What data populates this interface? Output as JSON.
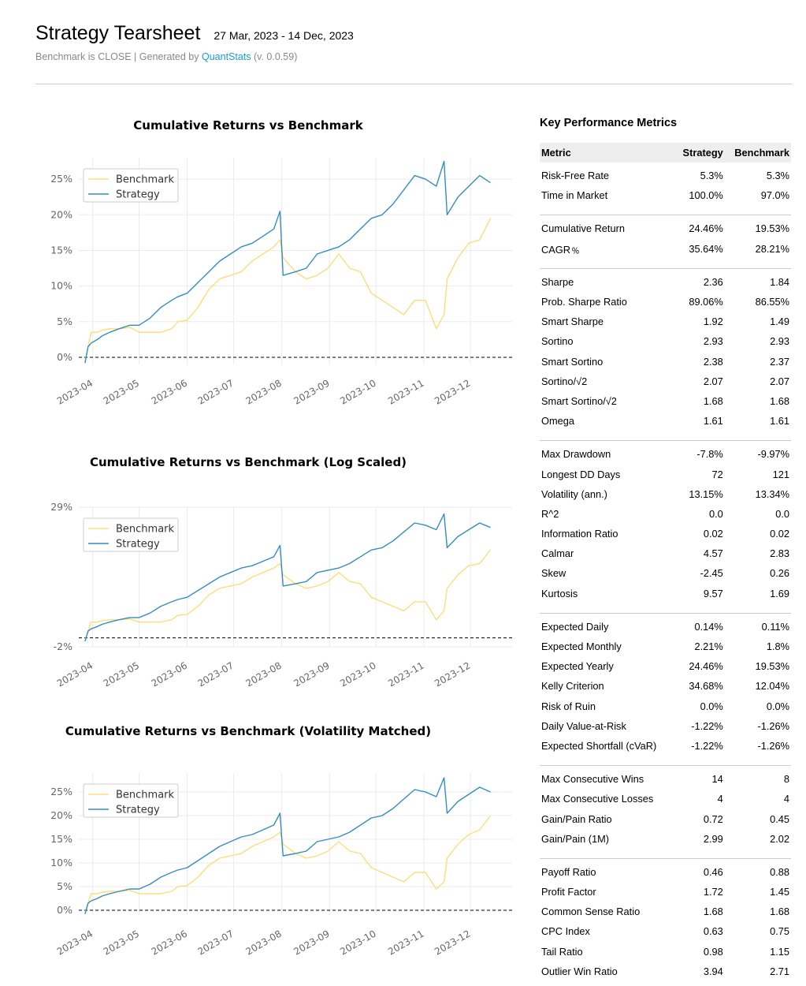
{
  "header": {
    "title": "Strategy Tearsheet",
    "date_range": "27 Mar, 2023 - 14 Dec, 2023",
    "subtitle_prefix": "Benchmark is CLOSE | Generated by ",
    "subtitle_link": "QuantStats",
    "subtitle_suffix": " (v. 0.0.59)"
  },
  "colors": {
    "benchmark": "#fedd78",
    "strategy": "#348dc1",
    "grid": "#ebebeb",
    "axis_text": "#666666"
  },
  "chart_data": [
    {
      "type": "line",
      "title": "Cumulative Returns vs Benchmark",
      "xlabel": "",
      "ylabel": "",
      "x": [
        "2023-03-27",
        "2023-03-29",
        "2023-03-31",
        "2023-04-04",
        "2023-04-07",
        "2023-04-12",
        "2023-04-18",
        "2023-04-25",
        "2023-05-01",
        "2023-05-08",
        "2023-05-15",
        "2023-05-22",
        "2023-05-26",
        "2023-06-01",
        "2023-06-08",
        "2023-06-15",
        "2023-06-22",
        "2023-06-29",
        "2023-07-06",
        "2023-07-13",
        "2023-07-20",
        "2023-07-27",
        "2023-07-31",
        "2023-08-02",
        "2023-08-10",
        "2023-08-17",
        "2023-08-24",
        "2023-08-31",
        "2023-09-07",
        "2023-09-14",
        "2023-09-21",
        "2023-09-28",
        "2023-10-05",
        "2023-10-12",
        "2023-10-19",
        "2023-10-26",
        "2023-11-02",
        "2023-11-09",
        "2023-11-14",
        "2023-11-16",
        "2023-11-23",
        "2023-11-30",
        "2023-12-07",
        "2023-12-14"
      ],
      "x_ticks": [
        "2023-04",
        "2023-05",
        "2023-06",
        "2023-07",
        "2023-08",
        "2023-09",
        "2023-10",
        "2023-11",
        "2023-12"
      ],
      "x_tick_dates": [
        "2023-04-01",
        "2023-05-01",
        "2023-06-01",
        "2023-07-01",
        "2023-08-01",
        "2023-09-01",
        "2023-10-01",
        "2023-11-01",
        "2023-12-01"
      ],
      "y_ticks": [
        "0%",
        "5%",
        "10%",
        "15%",
        "20%",
        "25%"
      ],
      "y_tick_values": [
        0,
        5,
        10,
        15,
        20,
        25
      ],
      "ylim": [
        -1,
        28
      ],
      "legend_position": "upper-left",
      "baseline": 0,
      "series": [
        {
          "name": "Benchmark",
          "values": [
            -0.5,
            1.5,
            3.5,
            3.5,
            3.8,
            4.0,
            4.0,
            4.2,
            3.5,
            3.5,
            3.5,
            4.0,
            5.0,
            5.2,
            7.0,
            9.5,
            11.0,
            11.5,
            12.0,
            13.5,
            14.5,
            15.5,
            16.5,
            14.0,
            12.0,
            11.0,
            11.5,
            12.5,
            14.5,
            12.5,
            12.0,
            9.0,
            8.0,
            7.0,
            6.0,
            8.0,
            8.0,
            4.0,
            6.0,
            11.0,
            14.0,
            16.0,
            16.5,
            19.5
          ]
        },
        {
          "name": "Strategy",
          "values": [
            -0.8,
            1.5,
            2.0,
            2.5,
            3.0,
            3.5,
            4.0,
            4.5,
            4.5,
            5.5,
            7.0,
            8.0,
            8.5,
            9.0,
            10.5,
            12.0,
            13.5,
            14.5,
            15.5,
            16.0,
            17.0,
            18.0,
            20.5,
            11.5,
            12.0,
            12.5,
            14.5,
            15.0,
            15.5,
            16.5,
            18.0,
            19.5,
            20.0,
            21.5,
            23.5,
            25.5,
            25.0,
            24.0,
            27.5,
            20.0,
            22.5,
            24.0,
            25.5,
            24.5
          ]
        }
      ]
    },
    {
      "type": "line",
      "title": "Cumulative Returns vs Benchmark (Log Scaled)",
      "xlabel": "",
      "ylabel": "",
      "log_scale": true,
      "x": [
        "2023-03-27",
        "2023-03-29",
        "2023-03-31",
        "2023-04-04",
        "2023-04-07",
        "2023-04-12",
        "2023-04-18",
        "2023-04-25",
        "2023-05-01",
        "2023-05-08",
        "2023-05-15",
        "2023-05-22",
        "2023-05-26",
        "2023-06-01",
        "2023-06-08",
        "2023-06-15",
        "2023-06-22",
        "2023-06-29",
        "2023-07-06",
        "2023-07-13",
        "2023-07-20",
        "2023-07-27",
        "2023-07-31",
        "2023-08-02",
        "2023-08-10",
        "2023-08-17",
        "2023-08-24",
        "2023-08-31",
        "2023-09-07",
        "2023-09-14",
        "2023-09-21",
        "2023-09-28",
        "2023-10-05",
        "2023-10-12",
        "2023-10-19",
        "2023-10-26",
        "2023-11-02",
        "2023-11-09",
        "2023-11-14",
        "2023-11-16",
        "2023-11-23",
        "2023-11-30",
        "2023-12-07",
        "2023-12-14"
      ],
      "x_ticks": [
        "2023-04",
        "2023-05",
        "2023-06",
        "2023-07",
        "2023-08",
        "2023-09",
        "2023-10",
        "2023-11",
        "2023-12"
      ],
      "x_tick_dates": [
        "2023-04-01",
        "2023-05-01",
        "2023-06-01",
        "2023-07-01",
        "2023-08-01",
        "2023-09-01",
        "2023-10-01",
        "2023-11-01",
        "2023-12-01"
      ],
      "y_ticks": [
        "-2%",
        "29%"
      ],
      "y_tick_values": [
        -2,
        29
      ],
      "ylim": [
        -2,
        29
      ],
      "legend_position": "upper-left",
      "baseline": 0,
      "series": [
        {
          "name": "Benchmark",
          "values": [
            -0.5,
            1.5,
            3.5,
            3.5,
            3.8,
            4.0,
            4.0,
            4.2,
            3.5,
            3.5,
            3.5,
            4.0,
            5.0,
            5.2,
            7.0,
            9.5,
            11.0,
            11.5,
            12.0,
            13.5,
            14.5,
            15.5,
            16.5,
            14.0,
            12.0,
            11.0,
            11.5,
            12.5,
            14.5,
            12.5,
            12.0,
            9.0,
            8.0,
            7.0,
            6.0,
            8.0,
            8.0,
            4.0,
            6.0,
            11.0,
            14.0,
            16.0,
            16.5,
            19.5
          ]
        },
        {
          "name": "Strategy",
          "values": [
            -0.8,
            1.5,
            2.0,
            2.5,
            3.0,
            3.5,
            4.0,
            4.5,
            4.5,
            5.5,
            7.0,
            8.0,
            8.5,
            9.0,
            10.5,
            12.0,
            13.5,
            14.5,
            15.5,
            16.0,
            17.0,
            18.0,
            20.5,
            11.5,
            12.0,
            12.5,
            14.5,
            15.0,
            15.5,
            16.5,
            18.0,
            19.5,
            20.0,
            21.5,
            23.5,
            25.5,
            25.0,
            24.0,
            27.5,
            20.0,
            22.5,
            24.0,
            25.5,
            24.5
          ]
        }
      ]
    },
    {
      "type": "line",
      "title": "Cumulative Returns vs Benchmark (Volatility Matched)",
      "xlabel": "",
      "ylabel": "",
      "x": [
        "2023-03-27",
        "2023-03-29",
        "2023-03-31",
        "2023-04-04",
        "2023-04-07",
        "2023-04-12",
        "2023-04-18",
        "2023-04-25",
        "2023-05-01",
        "2023-05-08",
        "2023-05-15",
        "2023-05-22",
        "2023-05-26",
        "2023-06-01",
        "2023-06-08",
        "2023-06-15",
        "2023-06-22",
        "2023-06-29",
        "2023-07-06",
        "2023-07-13",
        "2023-07-20",
        "2023-07-27",
        "2023-07-31",
        "2023-08-02",
        "2023-08-10",
        "2023-08-17",
        "2023-08-24",
        "2023-08-31",
        "2023-09-07",
        "2023-09-14",
        "2023-09-21",
        "2023-09-28",
        "2023-10-05",
        "2023-10-12",
        "2023-10-19",
        "2023-10-26",
        "2023-11-02",
        "2023-11-09",
        "2023-11-14",
        "2023-11-16",
        "2023-11-23",
        "2023-11-30",
        "2023-12-07",
        "2023-12-14"
      ],
      "x_ticks": [
        "2023-04",
        "2023-05",
        "2023-06",
        "2023-07",
        "2023-08",
        "2023-09",
        "2023-10",
        "2023-11",
        "2023-12"
      ],
      "x_tick_dates": [
        "2023-04-01",
        "2023-05-01",
        "2023-06-01",
        "2023-07-01",
        "2023-08-01",
        "2023-09-01",
        "2023-10-01",
        "2023-11-01",
        "2023-12-01"
      ],
      "y_ticks": [
        "0%",
        "5%",
        "10%",
        "15%",
        "20%",
        "25%"
      ],
      "y_tick_values": [
        0,
        5,
        10,
        15,
        20,
        25
      ],
      "ylim": [
        -1,
        29
      ],
      "legend_position": "upper-left",
      "baseline": 0,
      "series": [
        {
          "name": "Benchmark",
          "values": [
            -0.5,
            1.5,
            3.5,
            3.5,
            3.8,
            4.0,
            4.0,
            4.2,
            3.5,
            3.5,
            3.5,
            4.0,
            5.0,
            5.2,
            7.0,
            9.5,
            11.0,
            11.5,
            12.0,
            13.5,
            14.5,
            15.5,
            16.5,
            14.0,
            12.0,
            11.0,
            11.5,
            12.5,
            14.5,
            12.5,
            12.0,
            9.0,
            8.0,
            7.0,
            6.0,
            8.0,
            8.0,
            4.5,
            6.0,
            11.0,
            14.0,
            16.0,
            17.0,
            20.0
          ]
        },
        {
          "name": "Strategy",
          "values": [
            -0.8,
            1.5,
            2.0,
            2.5,
            3.0,
            3.5,
            4.0,
            4.5,
            4.5,
            5.5,
            7.0,
            8.0,
            8.5,
            9.0,
            10.5,
            12.0,
            13.5,
            14.5,
            15.5,
            16.0,
            17.0,
            18.0,
            20.5,
            11.5,
            12.0,
            12.5,
            14.5,
            15.0,
            15.5,
            16.5,
            18.0,
            19.5,
            20.0,
            21.5,
            23.5,
            25.5,
            25.0,
            24.0,
            28.0,
            20.5,
            23.0,
            24.5,
            26.0,
            25.0
          ]
        }
      ]
    }
  ],
  "metrics": {
    "title": "Key Performance Metrics",
    "columns": {
      "metric": "Metric",
      "strategy": "Strategy",
      "benchmark": "Benchmark"
    },
    "groups": [
      [
        {
          "m": "Risk-Free Rate",
          "s": "5.3%",
          "b": "5.3%"
        },
        {
          "m": "Time in Market",
          "s": "100.0%",
          "b": "97.0%"
        }
      ],
      [
        {
          "m": "Cumulative Return",
          "s": "24.46%",
          "b": "19.53%"
        },
        {
          "m": "CAGR﹪",
          "s": "35.64%",
          "b": "28.21%"
        }
      ],
      [
        {
          "m": "Sharpe",
          "s": "2.36",
          "b": "1.84"
        },
        {
          "m": "Prob. Sharpe Ratio",
          "s": "89.06%",
          "b": "86.55%"
        },
        {
          "m": "Smart Sharpe",
          "s": "1.92",
          "b": "1.49"
        },
        {
          "m": "Sortino",
          "s": "2.93",
          "b": "2.93"
        },
        {
          "m": "Smart Sortino",
          "s": "2.38",
          "b": "2.37"
        },
        {
          "m": "Sortino/√2",
          "s": "2.07",
          "b": "2.07"
        },
        {
          "m": "Smart Sortino/√2",
          "s": "1.68",
          "b": "1.68"
        },
        {
          "m": "Omega",
          "s": "1.61",
          "b": "1.61"
        }
      ],
      [
        {
          "m": "Max Drawdown",
          "s": "-7.8%",
          "b": "-9.97%"
        },
        {
          "m": "Longest DD Days",
          "s": "72",
          "b": "121"
        },
        {
          "m": "Volatility (ann.)",
          "s": "13.15%",
          "b": "13.34%"
        },
        {
          "m": "R^2",
          "s": "0.0",
          "b": "0.0"
        },
        {
          "m": "Information Ratio",
          "s": "0.02",
          "b": "0.02"
        },
        {
          "m": "Calmar",
          "s": "4.57",
          "b": "2.83"
        },
        {
          "m": "Skew",
          "s": "-2.45",
          "b": "0.26"
        },
        {
          "m": "Kurtosis",
          "s": "9.57",
          "b": "1.69"
        }
      ],
      [
        {
          "m": "Expected Daily",
          "s": "0.14%",
          "b": "0.11%"
        },
        {
          "m": "Expected Monthly",
          "s": "2.21%",
          "b": "1.8%"
        },
        {
          "m": "Expected Yearly",
          "s": "24.46%",
          "b": "19.53%"
        },
        {
          "m": "Kelly Criterion",
          "s": "34.68%",
          "b": "12.04%"
        },
        {
          "m": "Risk of Ruin",
          "s": "0.0%",
          "b": "0.0%"
        },
        {
          "m": "Daily Value-at-Risk",
          "s": "-1.22%",
          "b": "-1.26%"
        },
        {
          "m": "Expected Shortfall (cVaR)",
          "s": "-1.22%",
          "b": "-1.26%"
        }
      ],
      [
        {
          "m": "Max Consecutive Wins",
          "s": "14",
          "b": "8"
        },
        {
          "m": "Max Consecutive Losses",
          "s": "4",
          "b": "4"
        },
        {
          "m": "Gain/Pain Ratio",
          "s": "0.72",
          "b": "0.45"
        },
        {
          "m": "Gain/Pain (1M)",
          "s": "2.99",
          "b": "2.02"
        }
      ],
      [
        {
          "m": "Payoff Ratio",
          "s": "0.46",
          "b": "0.88"
        },
        {
          "m": "Profit Factor",
          "s": "1.72",
          "b": "1.45"
        },
        {
          "m": "Common Sense Ratio",
          "s": "1.68",
          "b": "1.68"
        },
        {
          "m": "CPC Index",
          "s": "0.63",
          "b": "0.75"
        },
        {
          "m": "Tail Ratio",
          "s": "0.98",
          "b": "1.15"
        },
        {
          "m": "Outlier Win Ratio",
          "s": "3.94",
          "b": "2.71"
        }
      ]
    ]
  }
}
